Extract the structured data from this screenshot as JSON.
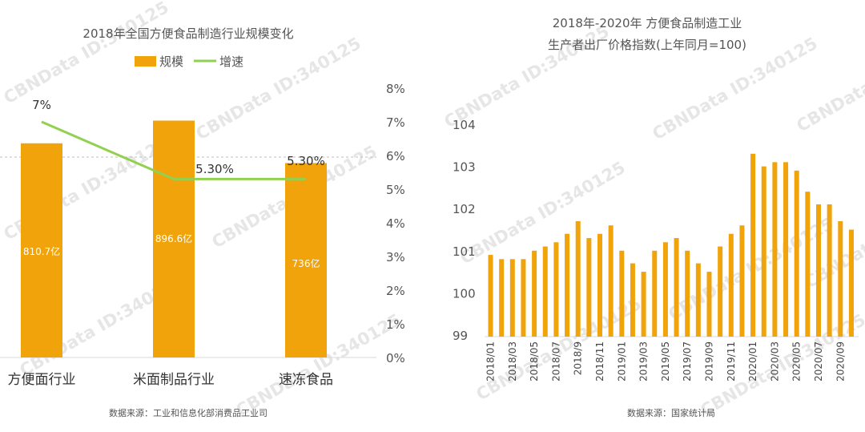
{
  "colors": {
    "bar": "#f0a30a",
    "line": "#92d050",
    "text": "#555555",
    "grid": "#bfbfbf",
    "axis": "#d9d9d9",
    "watermark": "#e6e6e6"
  },
  "watermark_text": "CBNData ID:340125",
  "chart_data": [
    {
      "type": "bar",
      "title": "2018年全国方便食品制造行业规模变化",
      "legend": [
        {
          "name": "规模",
          "kind": "bar"
        },
        {
          "name": "增速",
          "kind": "line"
        }
      ],
      "categories": [
        "方便面行业",
        "米面制品行业",
        "速冻食品"
      ],
      "series": [
        {
          "name": "规模",
          "unit": "亿",
          "values": [
            810.7,
            896.6,
            736
          ],
          "labels": [
            "810.7亿",
            "896.6亿",
            "736亿"
          ]
        },
        {
          "name": "增速",
          "axis": "right",
          "values": [
            7.0,
            5.3,
            5.3
          ],
          "labels": [
            "7%",
            "5.30%",
            "5.30%"
          ]
        }
      ],
      "y2lim": [
        0,
        8
      ],
      "y2ticks": [
        "0%",
        "1%",
        "2%",
        "3%",
        "4%",
        "5%",
        "6%",
        "7%",
        "8%"
      ],
      "source": "数据来源：工业和信息化部消费品工业司"
    },
    {
      "type": "bar",
      "title": "2018年-2020年 方便食品制造工业",
      "subtitle": "生产者出厂价格指数(上年同月=100)",
      "ylim": [
        99,
        104
      ],
      "yticks": [
        "99",
        "100",
        "101",
        "102",
        "103",
        "104"
      ],
      "x": [
        "2018/01",
        "2018/02",
        "2018/03",
        "2018/04",
        "2018/05",
        "2018/06",
        "2018/07",
        "2018/08",
        "2018/09",
        "2018/10",
        "2018/11",
        "2018/12",
        "2019/01",
        "2019/02",
        "2019/03",
        "2019/04",
        "2019/05",
        "2019/06",
        "2019/07",
        "2019/08",
        "2019/09",
        "2019/10",
        "2019/11",
        "2019/12",
        "2020/01",
        "2020/02",
        "2020/03",
        "2020/04",
        "2020/05",
        "2020/06",
        "2020/07",
        "2020/08",
        "2020/09",
        "2020/10"
      ],
      "xticks": [
        "2018/01",
        "2018/03",
        "2018/05",
        "2018/07",
        "2018/9",
        "2018/11",
        "2019/01",
        "2019/03",
        "2019/05",
        "2019/07",
        "2019/09",
        "2019/11",
        "2020/01",
        "2020/03",
        "2020/05",
        "2020/07",
        "2020/09"
      ],
      "values": [
        100.9,
        100.8,
        100.8,
        100.8,
        101.0,
        101.1,
        101.2,
        101.4,
        101.7,
        101.3,
        101.4,
        101.6,
        101.0,
        100.7,
        100.5,
        101.0,
        101.2,
        101.3,
        101.0,
        100.7,
        100.5,
        101.1,
        101.4,
        101.6,
        103.3,
        103.0,
        103.1,
        103.1,
        102.9,
        102.4,
        102.1,
        102.1,
        101.7,
        101.5
      ],
      "source": "数据来源：国家统计局"
    }
  ]
}
